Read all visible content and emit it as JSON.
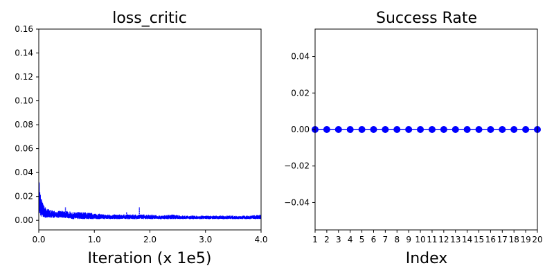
{
  "chart_data": [
    {
      "type": "line",
      "title": "loss_critic",
      "xlabel": "Iteration (x 1e5)",
      "ylabel": "",
      "xlim": [
        0.0,
        4.0
      ],
      "ylim": [
        -0.008,
        0.16
      ],
      "xticks": [
        "0.0",
        "1.0",
        "2.0",
        "3.0",
        "4.0"
      ],
      "xtick_values": [
        0.0,
        1.0,
        2.0,
        3.0,
        4.0
      ],
      "yticks": [
        "0.00",
        "0.02",
        "0.04",
        "0.06",
        "0.08",
        "0.10",
        "0.12",
        "0.14",
        "0.16"
      ],
      "ytick_values": [
        0.0,
        0.02,
        0.04,
        0.06,
        0.08,
        0.1,
        0.12,
        0.14,
        0.16
      ],
      "grid": false,
      "color": "#0000ff",
      "series": [
        {
          "x": [
            0.0,
            0.01,
            0.02,
            0.04,
            0.06,
            0.08,
            0.1,
            0.15,
            0.2,
            0.3,
            0.4,
            0.5,
            0.6,
            0.8,
            1.0,
            1.2,
            1.4,
            1.6,
            1.8,
            2.0,
            2.2,
            2.4,
            2.6,
            2.8,
            3.0,
            3.2,
            3.4,
            3.6,
            3.8,
            4.0
          ],
          "upper": [
            0.055,
            0.035,
            0.026,
            0.02,
            0.016,
            0.014,
            0.012,
            0.01,
            0.009,
            0.008,
            0.008,
            0.008,
            0.007,
            0.007,
            0.006,
            0.005,
            0.005,
            0.005,
            0.005,
            0.005,
            0.004,
            0.005,
            0.004,
            0.004,
            0.004,
            0.004,
            0.004,
            0.004,
            0.004,
            0.005
          ],
          "lower": [
            0.005,
            0.004,
            0.003,
            0.003,
            0.003,
            0.002,
            0.002,
            0.002,
            0.002,
            0.002,
            0.002,
            0.002,
            0.001,
            0.001,
            0.001,
            0.001,
            0.001,
            0.001,
            0.001,
            0.001,
            0.001,
            0.001,
            0.001,
            0.001,
            0.001,
            0.001,
            0.001,
            0.001,
            0.001,
            0.001
          ]
        }
      ],
      "spikes": [
        {
          "x": 0.48,
          "y": 0.011
        },
        {
          "x": 1.58,
          "y": 0.007
        },
        {
          "x": 1.81,
          "y": 0.011
        },
        {
          "x": 1.75,
          "y": 0.004
        }
      ]
    },
    {
      "type": "line",
      "title": "Success Rate",
      "xlabel": "Index",
      "ylabel": "",
      "xlim": [
        1,
        20
      ],
      "ylim": [
        -0.055,
        0.055
      ],
      "xticks": [
        "1",
        "2",
        "3",
        "4",
        "5",
        "6",
        "7",
        "8",
        "9",
        "10",
        "11",
        "12",
        "13",
        "14",
        "15",
        "16",
        "17",
        "18",
        "19",
        "20"
      ],
      "yticks": [
        "−0.04",
        "−0.02",
        "0.00",
        "0.02",
        "0.04"
      ],
      "ytick_values": [
        -0.04,
        -0.02,
        0.0,
        0.02,
        0.04
      ],
      "grid": false,
      "color": "#0000ff",
      "marker": "circle",
      "series": [
        {
          "x": [
            1,
            2,
            3,
            4,
            5,
            6,
            7,
            8,
            9,
            10,
            11,
            12,
            13,
            14,
            15,
            16,
            17,
            18,
            19,
            20
          ],
          "values": [
            0,
            0,
            0,
            0,
            0,
            0,
            0,
            0,
            0,
            0,
            0,
            0,
            0,
            0,
            0,
            0,
            0,
            0,
            0,
            0
          ]
        }
      ]
    }
  ]
}
